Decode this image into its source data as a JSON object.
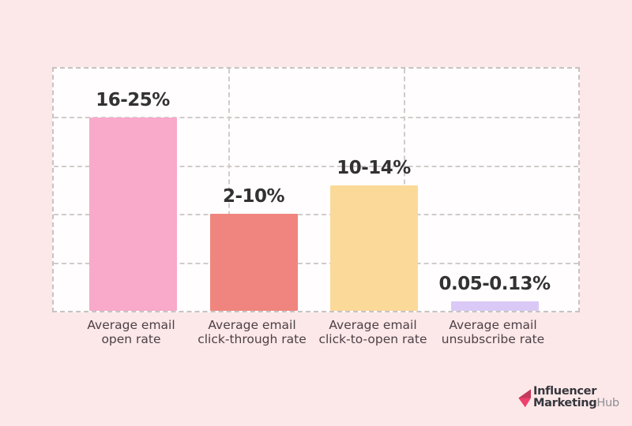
{
  "page": {
    "background_color": "#fce8e8",
    "plot_background": "#fffdfd",
    "grid_color": "#d2cbcb"
  },
  "chart_data": {
    "type": "bar",
    "title": "",
    "xlabel": "",
    "ylabel": "",
    "legend": "none",
    "grid": {
      "visible": true,
      "style": "dashed",
      "horizontal_divisions": 5,
      "vertical_divisions": 3
    },
    "ylim_estimate": [
      0,
      25
    ],
    "gridline_step_estimate": 5,
    "categories": [
      "Average email open rate",
      "Average email click-through rate",
      "Average email click-to-open rate",
      "Average email unsubscribe rate"
    ],
    "value_labels": [
      "16-25%",
      "2-10%",
      "10-14%",
      "0.05-0.13%"
    ],
    "plotted_values_estimate": [
      20,
      10,
      13,
      1
    ],
    "bars": [
      {
        "range": "16-25%",
        "cat_line1": "Average email",
        "cat_line2": "open rate",
        "height_pct": 79.7,
        "color": "#f9a9c9"
      },
      {
        "range": "2-10%",
        "cat_line1": "Average email",
        "cat_line2": "click-through rate",
        "height_pct": 40.2,
        "color": "#f0857f"
      },
      {
        "range": "10-14%",
        "cat_line1": "Average email",
        "cat_line2": "click-to-open rate",
        "height_pct": 51.8,
        "color": "#fbd999"
      },
      {
        "range": "0.05-0.13%",
        "cat_line1": "Average email",
        "cat_line2": "unsubscribe rate",
        "height_pct": 3.9,
        "color": "#dac9f6"
      }
    ]
  },
  "logo": {
    "line1": "Influencer",
    "line2_part1": "Marketing",
    "line2_part2": "Hub",
    "icon": "pink-arrow-icon",
    "colors": {
      "text_dark": "#36363e",
      "text_muted": "#8d8d94",
      "icon_dark": "#c23a5c",
      "icon_bright": "#ee3f6d"
    }
  }
}
